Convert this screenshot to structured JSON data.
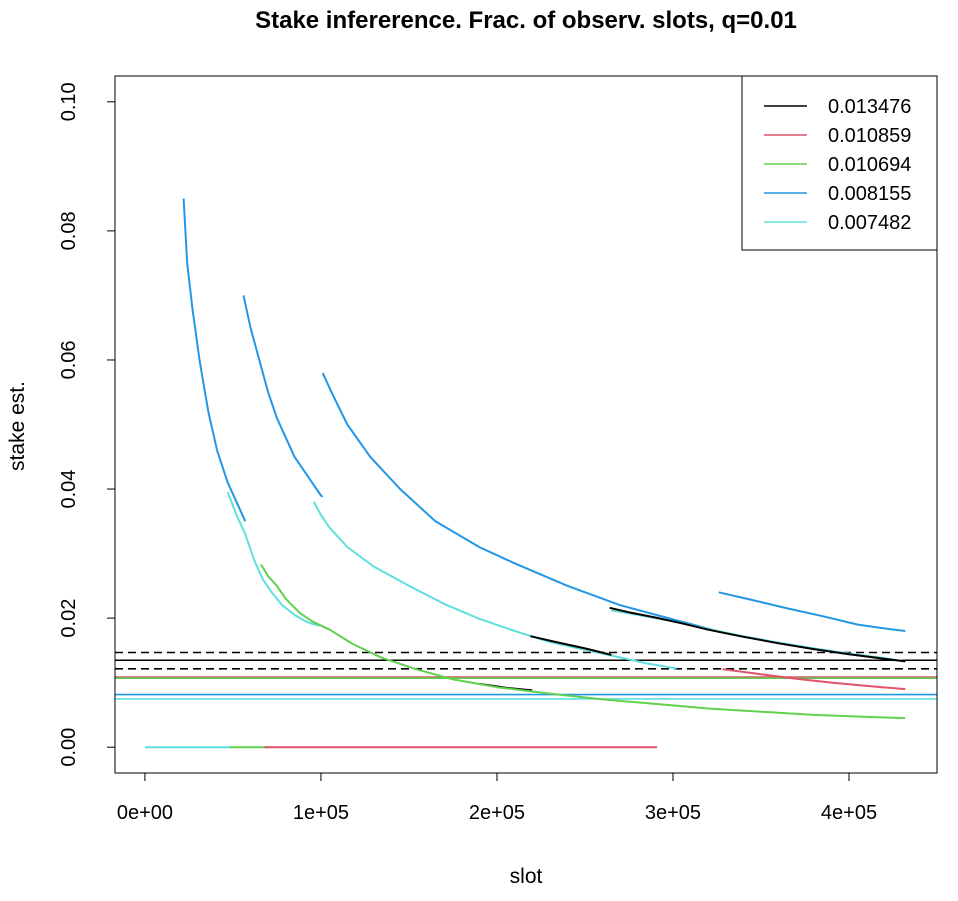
{
  "chart_data": {
    "type": "line",
    "title": "Stake infererence. Frac. of observ. slots, q=0.01",
    "xlabel": "slot",
    "ylabel": "stake est.",
    "xlim": [
      -17000,
      450000
    ],
    "ylim": [
      -0.004,
      0.104
    ],
    "x_ticks": [
      {
        "value": 0,
        "label": "0e+00"
      },
      {
        "value": 100000,
        "label": "1e+05"
      },
      {
        "value": 200000,
        "label": "2e+05"
      },
      {
        "value": 300000,
        "label": "3e+05"
      },
      {
        "value": 400000,
        "label": "4e+05"
      }
    ],
    "y_ticks": [
      {
        "value": 0.0,
        "label": "0.00"
      },
      {
        "value": 0.02,
        "label": "0.02"
      },
      {
        "value": 0.04,
        "label": "0.04"
      },
      {
        "value": 0.06,
        "label": "0.06"
      },
      {
        "value": 0.08,
        "label": "0.08"
      },
      {
        "value": 0.1,
        "label": "0.10"
      }
    ],
    "legend_position": "top-right",
    "grid": false,
    "series": [
      {
        "name": "0.013476",
        "color": "#000000"
      },
      {
        "name": "0.010859",
        "color": "#DF536B"
      },
      {
        "name": "0.010694",
        "color": "#61D04F"
      },
      {
        "name": "0.008155",
        "color": "#2297E6"
      },
      {
        "name": "0.007482",
        "color": "#5FE0DF"
      }
    ],
    "reference_lines": [
      {
        "y": 0.01467,
        "color": "#000000",
        "style": "dashed"
      },
      {
        "y": 0.01347,
        "color": "#000000",
        "style": "solid"
      },
      {
        "y": 0.01215,
        "color": "#000000",
        "style": "dashed"
      },
      {
        "y": 0.01086,
        "color": "#DF536B",
        "style": "solid"
      },
      {
        "y": 0.01069,
        "color": "#61D04F",
        "style": "solid"
      },
      {
        "y": 0.00815,
        "color": "#2297E6",
        "style": "solid"
      },
      {
        "y": 0.00748,
        "color": "#5FE0DF",
        "style": "solid"
      }
    ],
    "segments": [
      {
        "color": "#2297E6",
        "points": [
          [
            22000,
            0.085
          ],
          [
            24000,
            0.075
          ],
          [
            27000,
            0.068
          ],
          [
            31000,
            0.06
          ],
          [
            36000,
            0.052
          ],
          [
            41000,
            0.046
          ],
          [
            47000,
            0.041
          ],
          [
            52000,
            0.038
          ],
          [
            57000,
            0.035
          ]
        ]
      },
      {
        "color": "#2297E6",
        "points": [
          [
            56000,
            0.07
          ],
          [
            60000,
            0.065
          ],
          [
            65000,
            0.06
          ],
          [
            70000,
            0.055
          ],
          [
            75000,
            0.051
          ],
          [
            80000,
            0.048
          ],
          [
            85000,
            0.045
          ],
          [
            90000,
            0.043
          ],
          [
            95000,
            0.041
          ],
          [
            100000,
            0.039
          ],
          [
            101000,
            0.0388
          ]
        ]
      },
      {
        "color": "#2297E6",
        "points": [
          [
            101000,
            0.058
          ],
          [
            106000,
            0.055
          ],
          [
            115000,
            0.05
          ],
          [
            128000,
            0.045
          ],
          [
            145000,
            0.04
          ],
          [
            165000,
            0.035
          ],
          [
            190000,
            0.031
          ],
          [
            210000,
            0.0285
          ],
          [
            240000,
            0.025
          ],
          [
            270000,
            0.022
          ],
          [
            300000,
            0.0198
          ],
          [
            325000,
            0.018
          ]
        ]
      },
      {
        "color": "#2297E6",
        "points": [
          [
            326000,
            0.024
          ],
          [
            345000,
            0.0228
          ],
          [
            365000,
            0.0215
          ],
          [
            385000,
            0.0203
          ],
          [
            405000,
            0.019
          ],
          [
            420000,
            0.0184
          ],
          [
            432000,
            0.018
          ]
        ]
      },
      {
        "color": "#5FE0DF",
        "points": [
          [
            47000,
            0.0395
          ],
          [
            52000,
            0.036
          ],
          [
            57000,
            0.033
          ],
          [
            62000,
            0.029
          ],
          [
            67000,
            0.026
          ],
          [
            72000,
            0.024
          ],
          [
            78000,
            0.022
          ],
          [
            85000,
            0.0205
          ],
          [
            92000,
            0.0194
          ],
          [
            99000,
            0.0188
          ]
        ]
      },
      {
        "color": "#5FE0DF",
        "points": [
          [
            96000,
            0.038
          ],
          [
            100000,
            0.036
          ],
          [
            105000,
            0.034
          ],
          [
            115000,
            0.031
          ],
          [
            130000,
            0.028
          ],
          [
            150000,
            0.025
          ],
          [
            170000,
            0.0222
          ],
          [
            190000,
            0.0199
          ],
          [
            210000,
            0.018
          ],
          [
            230000,
            0.0163
          ],
          [
            260000,
            0.0145
          ],
          [
            285000,
            0.013
          ],
          [
            302000,
            0.0122
          ]
        ]
      },
      {
        "color": "#5FE0DF",
        "points": [
          [
            265000,
            0.0212
          ],
          [
            280000,
            0.0205
          ],
          [
            300000,
            0.0195
          ],
          [
            320000,
            0.0183
          ],
          [
            340000,
            0.0172
          ],
          [
            360000,
            0.0162
          ],
          [
            380000,
            0.0153
          ],
          [
            400000,
            0.0145
          ],
          [
            420000,
            0.0138
          ],
          [
            432000,
            0.0133
          ]
        ]
      },
      {
        "color": "#000000",
        "points": [
          [
            219000,
            0.0172
          ],
          [
            235000,
            0.0162
          ],
          [
            250000,
            0.0153
          ],
          [
            265000,
            0.0143
          ]
        ]
      },
      {
        "color": "#000000",
        "points": [
          [
            264000,
            0.0216
          ],
          [
            275000,
            0.0209
          ],
          [
            290000,
            0.0201
          ],
          [
            305000,
            0.0192
          ],
          [
            320000,
            0.0182
          ],
          [
            340000,
            0.0171
          ],
          [
            360000,
            0.0161
          ],
          [
            380000,
            0.0152
          ],
          [
            400000,
            0.0144
          ],
          [
            420000,
            0.0137
          ],
          [
            432000,
            0.0133
          ]
        ]
      },
      {
        "color": "#000000",
        "points": [
          [
            190000,
            0.0098
          ],
          [
            205000,
            0.0092
          ],
          [
            220000,
            0.0088
          ]
        ]
      },
      {
        "color": "#61D04F",
        "points": [
          [
            66000,
            0.0283
          ],
          [
            70000,
            0.0265
          ],
          [
            75000,
            0.025
          ],
          [
            80000,
            0.023
          ],
          [
            88000,
            0.0208
          ],
          [
            95000,
            0.0195
          ],
          [
            105000,
            0.0182
          ],
          [
            118000,
            0.016
          ],
          [
            135000,
            0.0138
          ],
          [
            155000,
            0.012
          ],
          [
            175000,
            0.0105
          ],
          [
            200000,
            0.0093
          ],
          [
            230000,
            0.0083
          ],
          [
            260000,
            0.0074
          ],
          [
            290000,
            0.0067
          ],
          [
            320000,
            0.006
          ],
          [
            350000,
            0.0055
          ],
          [
            380000,
            0.005
          ],
          [
            410000,
            0.0047
          ],
          [
            432000,
            0.0045
          ]
        ]
      },
      {
        "color": "#DF536B",
        "points": [
          [
            328000,
            0.0121
          ],
          [
            350000,
            0.0113
          ],
          [
            370000,
            0.0106
          ],
          [
            390000,
            0.01
          ],
          [
            410000,
            0.0095
          ],
          [
            432000,
            0.009
          ]
        ]
      },
      {
        "color": "#5FE0DF",
        "points": [
          [
            0,
            0.0
          ],
          [
            48000,
            0.0
          ]
        ]
      },
      {
        "color": "#61D04F",
        "points": [
          [
            48000,
            0.0
          ],
          [
            70000,
            0.0
          ]
        ]
      },
      {
        "color": "#DF536B",
        "points": [
          [
            68000,
            0.0
          ],
          [
            291000,
            0.0
          ]
        ]
      }
    ]
  }
}
